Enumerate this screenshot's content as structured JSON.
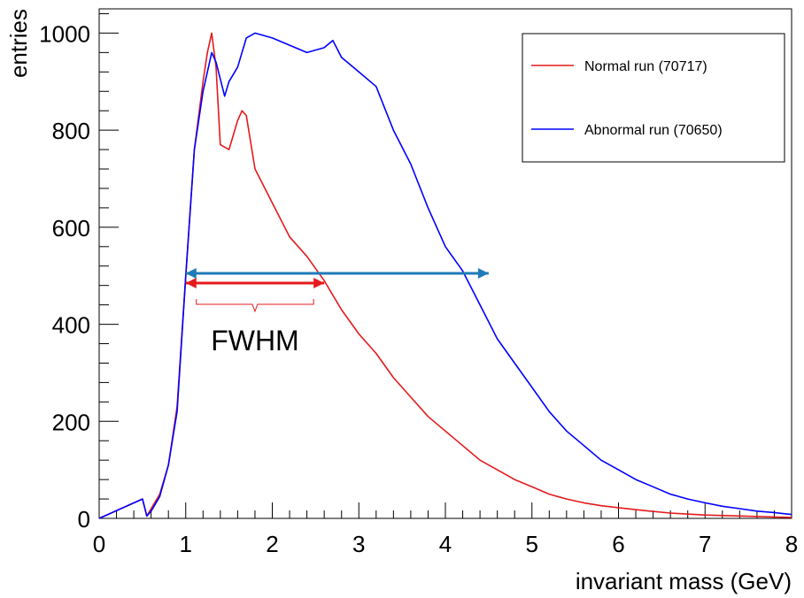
{
  "chart_data": {
    "type": "line",
    "xlabel": "invariant mass (GeV)",
    "ylabel": "entries",
    "xlim": [
      0,
      8
    ],
    "ylim": [
      0,
      1050
    ],
    "x_ticks": [
      "0",
      "1",
      "2",
      "3",
      "4",
      "5",
      "6",
      "7",
      "8"
    ],
    "y_ticks": [
      "0",
      "200",
      "400",
      "600",
      "800",
      "1000"
    ],
    "grid": false,
    "legend_position": "top-right",
    "series": [
      {
        "name": "Normal run (70717)",
        "color": "#e41a1c",
        "x": [
          0,
          0.5,
          0.55,
          0.6,
          0.7,
          0.8,
          0.9,
          1.0,
          1.1,
          1.2,
          1.25,
          1.3,
          1.35,
          1.4,
          1.5,
          1.6,
          1.65,
          1.7,
          1.8,
          2.0,
          2.2,
          2.4,
          2.6,
          2.8,
          3.0,
          3.2,
          3.4,
          3.6,
          3.8,
          4.0,
          4.2,
          4.4,
          4.6,
          4.8,
          5.0,
          5.2,
          5.4,
          5.6,
          5.8,
          6.0,
          6.3,
          6.6,
          7.0,
          7.4,
          7.8,
          8.0
        ],
        "y": [
          0,
          40,
          5,
          20,
          50,
          110,
          230,
          500,
          760,
          900,
          960,
          1000,
          930,
          770,
          760,
          820,
          840,
          830,
          720,
          650,
          580,
          540,
          490,
          430,
          380,
          340,
          290,
          250,
          210,
          180,
          150,
          120,
          100,
          80,
          65,
          50,
          40,
          32,
          26,
          22,
          16,
          11,
          7,
          5,
          3,
          2
        ]
      },
      {
        "name": "Abnormal run (70650)",
        "color": "#0000ff",
        "x": [
          0,
          0.5,
          0.55,
          0.6,
          0.7,
          0.8,
          0.9,
          1.0,
          1.1,
          1.2,
          1.3,
          1.35,
          1.45,
          1.5,
          1.6,
          1.7,
          1.8,
          2.0,
          2.2,
          2.4,
          2.6,
          2.7,
          2.8,
          3.0,
          3.2,
          3.4,
          3.6,
          3.8,
          4.0,
          4.2,
          4.4,
          4.6,
          4.8,
          5.0,
          5.2,
          5.4,
          5.6,
          5.8,
          6.0,
          6.2,
          6.4,
          6.6,
          6.8,
          7.0,
          7.2,
          7.4,
          7.6,
          7.8,
          8.0
        ],
        "y": [
          0,
          40,
          5,
          15,
          45,
          110,
          220,
          500,
          760,
          880,
          960,
          940,
          870,
          900,
          930,
          990,
          1000,
          990,
          975,
          960,
          970,
          985,
          950,
          920,
          890,
          800,
          730,
          640,
          560,
          510,
          440,
          370,
          320,
          270,
          220,
          180,
          150,
          120,
          100,
          80,
          65,
          50,
          40,
          32,
          25,
          20,
          15,
          12,
          8
        ]
      }
    ],
    "annotations": {
      "fwhm_label": "FWHM",
      "normal_fwhm_range": [
        1.0,
        2.6
      ],
      "abnormal_fwhm_range": [
        1.0,
        4.5
      ],
      "half_max_y": 500
    }
  }
}
